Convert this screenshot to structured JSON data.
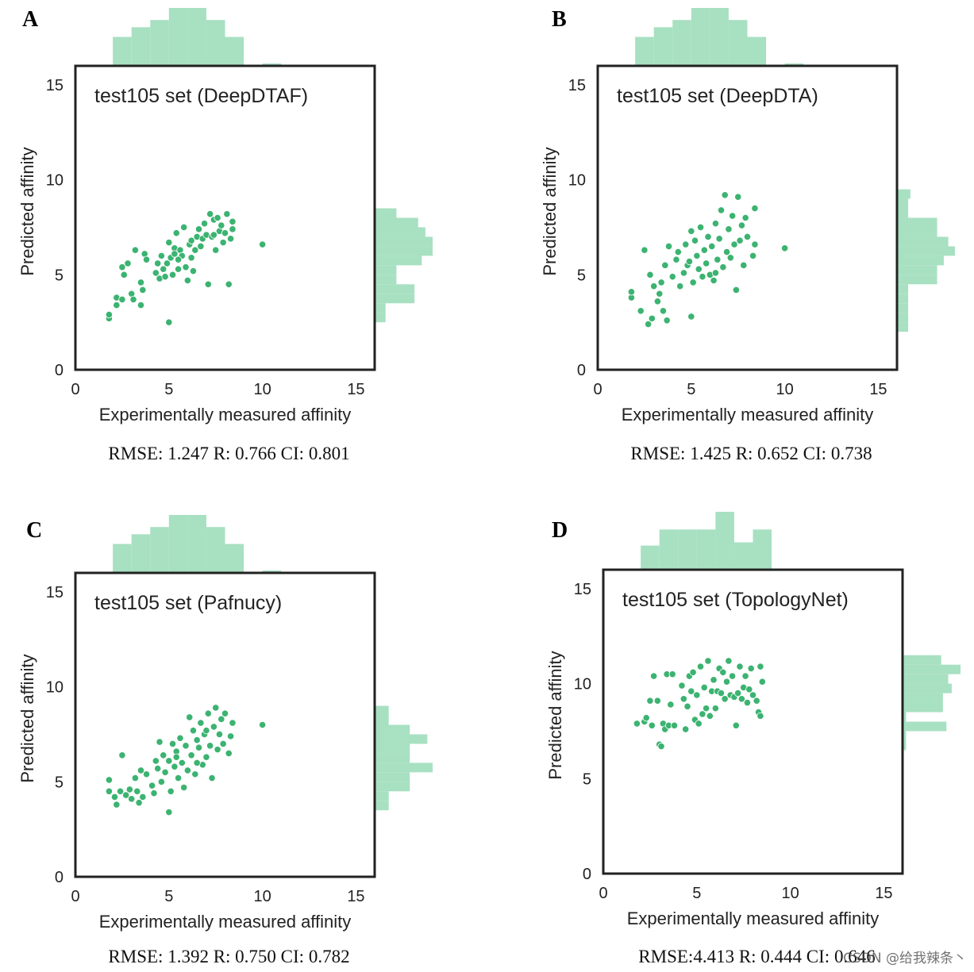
{
  "colors": {
    "point": "#3cb371",
    "hist": "#a8e0c2",
    "frame": "#222222",
    "text": "#222222"
  },
  "watermark": "CSDN @给我辣条丶",
  "chart_data": [
    {
      "panel": "A",
      "type": "scatter",
      "title": "test105 set (DeepDTAF)",
      "xlabel": "Experimentally measured affinity",
      "ylabel": "Predicted affinity",
      "xlim": [
        0,
        16
      ],
      "ylim": [
        0,
        16
      ],
      "xticks": [
        0,
        5,
        10,
        15
      ],
      "yticks": [
        0,
        5,
        10,
        15
      ],
      "metrics": "RMSE: 1.247 R: 0.766 CI: 0.801",
      "points": [
        [
          1.8,
          2.7
        ],
        [
          1.8,
          2.9
        ],
        [
          2.2,
          3.4
        ],
        [
          2.2,
          3.8
        ],
        [
          2.5,
          3.7
        ],
        [
          2.5,
          5.4
        ],
        [
          2.8,
          5.6
        ],
        [
          2.6,
          5.0
        ],
        [
          3.0,
          4.0
        ],
        [
          3.1,
          3.7
        ],
        [
          3.2,
          6.3
        ],
        [
          3.5,
          3.4
        ],
        [
          3.5,
          4.6
        ],
        [
          3.6,
          4.2
        ],
        [
          3.7,
          6.1
        ],
        [
          3.8,
          5.8
        ],
        [
          4.3,
          5.1
        ],
        [
          4.4,
          5.6
        ],
        [
          4.6,
          6.0
        ],
        [
          4.5,
          4.8
        ],
        [
          4.7,
          5.3
        ],
        [
          4.9,
          5.6
        ],
        [
          5.0,
          2.5
        ],
        [
          5.0,
          6.7
        ],
        [
          5.1,
          5.9
        ],
        [
          5.2,
          5.0
        ],
        [
          5.3,
          6.4
        ],
        [
          5.4,
          7.2
        ],
        [
          5.5,
          5.3
        ],
        [
          5.6,
          6.3
        ],
        [
          5.7,
          6.0
        ],
        [
          5.8,
          7.5
        ],
        [
          5.9,
          5.4
        ],
        [
          6.0,
          4.7
        ],
        [
          6.1,
          6.6
        ],
        [
          6.2,
          5.9
        ],
        [
          6.3,
          5.2
        ],
        [
          6.4,
          6.3
        ],
        [
          6.5,
          7.0
        ],
        [
          6.6,
          7.4
        ],
        [
          6.8,
          6.9
        ],
        [
          6.9,
          7.7
        ],
        [
          7.0,
          7.1
        ],
        [
          7.1,
          4.5
        ],
        [
          7.2,
          8.2
        ],
        [
          7.3,
          7.0
        ],
        [
          7.4,
          7.9
        ],
        [
          7.5,
          6.3
        ],
        [
          7.6,
          8.0
        ],
        [
          7.7,
          7.3
        ],
        [
          7.8,
          7.6
        ],
        [
          7.9,
          6.7
        ],
        [
          8.0,
          7.2
        ],
        [
          8.1,
          8.2
        ],
        [
          8.2,
          4.5
        ],
        [
          8.3,
          6.9
        ],
        [
          8.4,
          7.8
        ],
        [
          8.4,
          7.4
        ],
        [
          10.0,
          6.6
        ],
        [
          5.3,
          6.1
        ],
        [
          6.7,
          6.5
        ],
        [
          4.8,
          4.9
        ],
        [
          5.5,
          5.8
        ],
        [
          6.2,
          6.8
        ],
        [
          7.4,
          7.1
        ]
      ],
      "hist_x": {
        "edges": [
          0,
          1,
          2,
          3,
          4,
          5,
          6,
          7,
          8,
          9,
          10,
          11,
          12,
          13,
          14,
          15,
          16
        ],
        "counts": [
          0,
          0,
          12,
          16,
          19,
          24,
          24,
          19,
          12,
          0,
          1,
          0,
          0,
          0,
          0,
          0,
          0
        ]
      },
      "hist_y": {
        "edges": [
          2.5,
          3.0,
          3.5,
          4.0,
          4.5,
          5.0,
          5.5,
          6.0,
          6.5,
          7.0,
          7.5,
          8.0,
          8.5
        ],
        "counts": [
          3,
          3,
          11,
          11,
          6,
          6,
          13,
          16,
          16,
          14,
          12,
          6
        ]
      }
    },
    {
      "panel": "B",
      "type": "scatter",
      "title": "test105 set (DeepDTA)",
      "xlabel": "Experimentally measured affinity",
      "ylabel": "Predicted affinity",
      "xlim": [
        0,
        16
      ],
      "ylim": [
        0,
        16
      ],
      "xticks": [
        0,
        5,
        10,
        15
      ],
      "yticks": [
        0,
        5,
        10,
        15
      ],
      "metrics": "RMSE: 1.425 R: 0.652 CI: 0.738",
      "points": [
        [
          1.8,
          3.8
        ],
        [
          1.8,
          4.1
        ],
        [
          2.3,
          3.1
        ],
        [
          2.5,
          6.3
        ],
        [
          2.7,
          2.4
        ],
        [
          2.8,
          5.0
        ],
        [
          2.9,
          2.7
        ],
        [
          3.0,
          4.4
        ],
        [
          3.2,
          3.6
        ],
        [
          3.3,
          4.0
        ],
        [
          3.4,
          4.6
        ],
        [
          3.5,
          3.1
        ],
        [
          3.6,
          5.5
        ],
        [
          3.7,
          2.6
        ],
        [
          3.8,
          6.5
        ],
        [
          4.0,
          4.9
        ],
        [
          4.2,
          5.8
        ],
        [
          4.3,
          6.2
        ],
        [
          4.4,
          4.4
        ],
        [
          4.6,
          5.1
        ],
        [
          4.7,
          6.6
        ],
        [
          4.8,
          5.5
        ],
        [
          5.0,
          7.3
        ],
        [
          5.0,
          2.8
        ],
        [
          5.1,
          4.6
        ],
        [
          5.3,
          6.0
        ],
        [
          5.4,
          5.3
        ],
        [
          5.5,
          7.5
        ],
        [
          5.6,
          4.9
        ],
        [
          5.7,
          6.3
        ],
        [
          5.8,
          5.6
        ],
        [
          5.9,
          7.0
        ],
        [
          6.0,
          5.0
        ],
        [
          6.1,
          6.5
        ],
        [
          6.2,
          4.7
        ],
        [
          6.3,
          7.7
        ],
        [
          6.4,
          5.8
        ],
        [
          6.5,
          6.9
        ],
        [
          6.6,
          8.4
        ],
        [
          6.7,
          5.4
        ],
        [
          6.8,
          9.2
        ],
        [
          6.9,
          6.2
        ],
        [
          7.0,
          7.4
        ],
        [
          7.1,
          5.9
        ],
        [
          7.2,
          8.1
        ],
        [
          7.3,
          6.6
        ],
        [
          7.4,
          4.2
        ],
        [
          7.5,
          9.1
        ],
        [
          7.6,
          6.8
        ],
        [
          7.7,
          7.6
        ],
        [
          7.8,
          5.5
        ],
        [
          7.9,
          8.0
        ],
        [
          8.0,
          7.0
        ],
        [
          8.3,
          6.0
        ],
        [
          8.4,
          8.5
        ],
        [
          8.4,
          6.6
        ],
        [
          10.0,
          6.4
        ],
        [
          5.2,
          6.8
        ],
        [
          6.3,
          5.1
        ],
        [
          4.9,
          5.7
        ]
      ],
      "hist_x": {
        "edges": [
          0,
          1,
          2,
          3,
          4,
          5,
          6,
          7,
          8,
          9,
          10,
          11,
          12,
          13,
          14,
          15,
          16
        ],
        "counts": [
          0,
          0,
          12,
          16,
          19,
          24,
          24,
          19,
          12,
          0,
          1,
          0,
          0,
          0,
          0,
          0,
          0
        ]
      },
      "hist_y": {
        "edges": [
          2.0,
          2.5,
          3.0,
          3.5,
          4.0,
          4.5,
          5.0,
          5.5,
          6.0,
          6.5,
          7.0,
          7.5,
          8.0,
          8.5,
          9.0,
          9.5
        ],
        "counts": [
          5,
          5,
          5,
          5,
          5,
          18,
          18,
          21,
          26,
          23,
          18,
          18,
          5,
          5,
          6,
          6
        ]
      }
    },
    {
      "panel": "C",
      "type": "scatter",
      "title": "test105 set (Pafnucy)",
      "xlabel": "Experimentally measured affinity",
      "ylabel": "Predicted affinity",
      "xlim": [
        0,
        16
      ],
      "ylim": [
        0,
        16
      ],
      "xticks": [
        0,
        5,
        10,
        15
      ],
      "yticks": [
        0,
        5,
        10,
        15
      ],
      "metrics": "RMSE: 1.392 R: 0.750 CI: 0.782",
      "points": [
        [
          1.8,
          4.5
        ],
        [
          1.8,
          5.1
        ],
        [
          2.1,
          4.2
        ],
        [
          2.2,
          3.8
        ],
        [
          2.4,
          4.5
        ],
        [
          2.5,
          6.4
        ],
        [
          2.7,
          4.3
        ],
        [
          2.9,
          4.6
        ],
        [
          3.0,
          4.1
        ],
        [
          3.2,
          5.2
        ],
        [
          3.3,
          4.5
        ],
        [
          3.4,
          3.9
        ],
        [
          3.5,
          5.6
        ],
        [
          3.6,
          4.2
        ],
        [
          3.8,
          5.4
        ],
        [
          4.1,
          4.8
        ],
        [
          4.3,
          6.1
        ],
        [
          4.4,
          5.7
        ],
        [
          4.5,
          7.1
        ],
        [
          4.6,
          5.0
        ],
        [
          4.7,
          6.4
        ],
        [
          4.8,
          5.5
        ],
        [
          5.0,
          3.4
        ],
        [
          5.0,
          6.1
        ],
        [
          5.1,
          4.5
        ],
        [
          5.2,
          7.0
        ],
        [
          5.3,
          5.8
        ],
        [
          5.4,
          6.6
        ],
        [
          5.5,
          5.2
        ],
        [
          5.6,
          7.3
        ],
        [
          5.7,
          6.0
        ],
        [
          5.8,
          4.7
        ],
        [
          5.9,
          6.9
        ],
        [
          6.0,
          5.6
        ],
        [
          6.1,
          8.4
        ],
        [
          6.2,
          6.4
        ],
        [
          6.3,
          7.7
        ],
        [
          6.4,
          5.4
        ],
        [
          6.5,
          7.2
        ],
        [
          6.6,
          6.8
        ],
        [
          6.7,
          8.1
        ],
        [
          6.8,
          5.9
        ],
        [
          6.9,
          7.5
        ],
        [
          7.0,
          6.3
        ],
        [
          7.1,
          8.6
        ],
        [
          7.2,
          6.9
        ],
        [
          7.3,
          5.2
        ],
        [
          7.4,
          7.9
        ],
        [
          7.5,
          8.9
        ],
        [
          7.6,
          6.7
        ],
        [
          7.7,
          7.5
        ],
        [
          7.8,
          8.3
        ],
        [
          7.9,
          7.0
        ],
        [
          8.0,
          8.6
        ],
        [
          8.2,
          6.5
        ],
        [
          8.3,
          7.4
        ],
        [
          8.4,
          8.1
        ],
        [
          10.0,
          8.0
        ],
        [
          4.2,
          4.4
        ],
        [
          5.4,
          6.3
        ],
        [
          6.5,
          6.0
        ],
        [
          7.0,
          7.7
        ]
      ],
      "hist_x": {
        "edges": [
          0,
          1,
          2,
          3,
          4,
          5,
          6,
          7,
          8,
          9,
          10,
          11,
          12,
          13,
          14,
          15,
          16
        ],
        "counts": [
          0,
          0,
          12,
          16,
          19,
          24,
          24,
          19,
          12,
          0,
          1,
          0,
          0,
          0,
          0,
          0,
          0
        ]
      },
      "hist_y": {
        "edges": [
          3.5,
          4.0,
          4.5,
          5.0,
          5.5,
          6.0,
          6.5,
          7.0,
          7.5,
          8.0,
          8.5,
          9.0
        ],
        "counts": [
          8,
          8,
          20,
          20,
          33,
          20,
          20,
          30,
          20,
          8,
          8
        ]
      }
    },
    {
      "panel": "D",
      "type": "scatter",
      "title": "test105 set (TopologyNet)",
      "xlabel": "Experimentally measured affinity",
      "ylabel": "Predicted affinity",
      "xlim": [
        0,
        16
      ],
      "ylim": [
        0,
        16
      ],
      "xticks": [
        0,
        5,
        10,
        15
      ],
      "yticks": [
        0,
        5,
        10,
        15
      ],
      "metrics": "RMSE:4.413 R: 0.444 CI: 0.646",
      "points": [
        [
          1.8,
          7.9
        ],
        [
          2.2,
          8.0
        ],
        [
          2.3,
          8.2
        ],
        [
          2.5,
          9.1
        ],
        [
          2.6,
          7.8
        ],
        [
          2.7,
          10.4
        ],
        [
          2.9,
          9.1
        ],
        [
          3.0,
          6.8
        ],
        [
          3.1,
          6.7
        ],
        [
          3.2,
          7.9
        ],
        [
          3.3,
          7.6
        ],
        [
          3.4,
          10.5
        ],
        [
          3.5,
          7.8
        ],
        [
          3.6,
          8.9
        ],
        [
          3.7,
          10.5
        ],
        [
          3.8,
          7.8
        ],
        [
          4.2,
          9.9
        ],
        [
          4.3,
          9.2
        ],
        [
          4.4,
          7.6
        ],
        [
          4.5,
          8.8
        ],
        [
          4.6,
          10.4
        ],
        [
          4.7,
          9.6
        ],
        [
          4.8,
          10.6
        ],
        [
          4.9,
          8.1
        ],
        [
          5.0,
          9.4
        ],
        [
          5.1,
          7.9
        ],
        [
          5.2,
          10.9
        ],
        [
          5.3,
          8.4
        ],
        [
          5.4,
          9.8
        ],
        [
          5.5,
          8.7
        ],
        [
          5.6,
          11.2
        ],
        [
          5.7,
          8.3
        ],
        [
          5.8,
          9.6
        ],
        [
          5.9,
          10.2
        ],
        [
          6.0,
          8.7
        ],
        [
          6.1,
          9.6
        ],
        [
          6.2,
          10.8
        ],
        [
          6.3,
          9.5
        ],
        [
          6.4,
          10.6
        ],
        [
          6.5,
          9.2
        ],
        [
          6.6,
          10.1
        ],
        [
          6.7,
          11.2
        ],
        [
          6.8,
          9.4
        ],
        [
          6.9,
          10.4
        ],
        [
          7.0,
          9.3
        ],
        [
          7.1,
          7.8
        ],
        [
          7.2,
          9.5
        ],
        [
          7.3,
          10.9
        ],
        [
          7.4,
          9.2
        ],
        [
          7.5,
          9.8
        ],
        [
          7.6,
          10.4
        ],
        [
          7.7,
          9.0
        ],
        [
          7.8,
          9.7
        ],
        [
          7.9,
          10.8
        ],
        [
          8.0,
          9.4
        ],
        [
          8.2,
          9.1
        ],
        [
          8.3,
          8.5
        ],
        [
          8.4,
          10.9
        ],
        [
          8.4,
          8.3
        ],
        [
          8.5,
          10.1
        ]
      ],
      "hist_x": {
        "edges": [
          0,
          1,
          2,
          3,
          4,
          5,
          6,
          7,
          8,
          9,
          10,
          11,
          12,
          13,
          14,
          15,
          16
        ],
        "counts": [
          0,
          0,
          15,
          25,
          25,
          25,
          36,
          17,
          25,
          0,
          0,
          0,
          0,
          0,
          0,
          0,
          0
        ]
      },
      "hist_y": {
        "edges": [
          6.5,
          7.0,
          7.5,
          8.0,
          8.5,
          9.0,
          9.5,
          10.0,
          10.5,
          11.0,
          11.5
        ],
        "counts": [
          2,
          2,
          25,
          2,
          23,
          23,
          28,
          26,
          33,
          22
        ]
      }
    }
  ]
}
